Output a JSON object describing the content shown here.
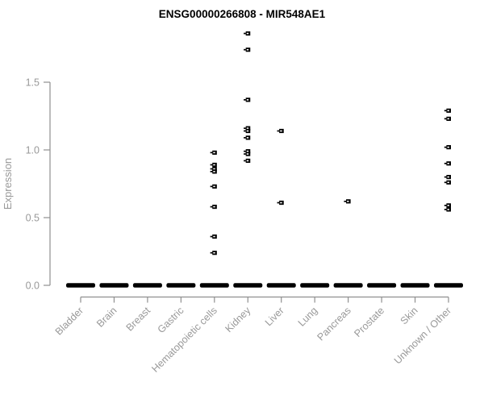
{
  "title": "ENSG00000266808 - MIR548AE1",
  "colors": {
    "point": "#000000",
    "axis_line": "#8f8f8f",
    "axis_text": "#999999",
    "title_text": "#000000",
    "background": "#ffffff"
  },
  "chart_data": {
    "type": "scatter",
    "title": "ENSG00000266808 - MIR548AE1",
    "xlabel": "",
    "ylabel": "Expression",
    "ylim": [
      0,
      1.9
    ],
    "yticks": [
      0.0,
      0.5,
      1.0,
      1.5
    ],
    "ytick_labels": [
      "0.0",
      "0.5",
      "1.0",
      "1.5"
    ],
    "grid": false,
    "legend": "none",
    "marker": "small black square with center notch and left whisker",
    "zero_bar_note": "every category shows a thick black dash of many overlapping samples at expression 0.0",
    "categories": [
      "Bladder",
      "Brain",
      "Breast",
      "Gastric",
      "Hematopoietic cells",
      "Kidney",
      "Liver",
      "Lung",
      "Pancreas",
      "Prostate",
      "Skin",
      "Unknown / Other"
    ],
    "series": [
      {
        "name": "Bladder",
        "nonzero_values": [],
        "zero_bar": true
      },
      {
        "name": "Brain",
        "nonzero_values": [],
        "zero_bar": true
      },
      {
        "name": "Breast",
        "nonzero_values": [],
        "zero_bar": true
      },
      {
        "name": "Gastric",
        "nonzero_values": [],
        "zero_bar": true
      },
      {
        "name": "Hematopoietic cells",
        "nonzero_values": [
          0.98,
          0.89,
          0.86,
          0.84,
          0.73,
          0.58,
          0.36,
          0.24
        ],
        "zero_bar": true
      },
      {
        "name": "Kidney",
        "nonzero_values": [
          1.86,
          1.74,
          1.37,
          1.16,
          1.14,
          1.09,
          0.99,
          0.97,
          0.92
        ],
        "zero_bar": true
      },
      {
        "name": "Liver",
        "nonzero_values": [
          1.14,
          0.61
        ],
        "zero_bar": true
      },
      {
        "name": "Lung",
        "nonzero_values": [],
        "zero_bar": true
      },
      {
        "name": "Pancreas",
        "nonzero_values": [
          0.62
        ],
        "zero_bar": true
      },
      {
        "name": "Prostate",
        "nonzero_values": [],
        "zero_bar": true
      },
      {
        "name": "Skin",
        "nonzero_values": [],
        "zero_bar": true
      },
      {
        "name": "Unknown / Other",
        "nonzero_values": [
          1.29,
          1.23,
          1.02,
          0.9,
          0.8,
          0.76,
          0.59,
          0.56
        ],
        "zero_bar": true
      }
    ]
  }
}
